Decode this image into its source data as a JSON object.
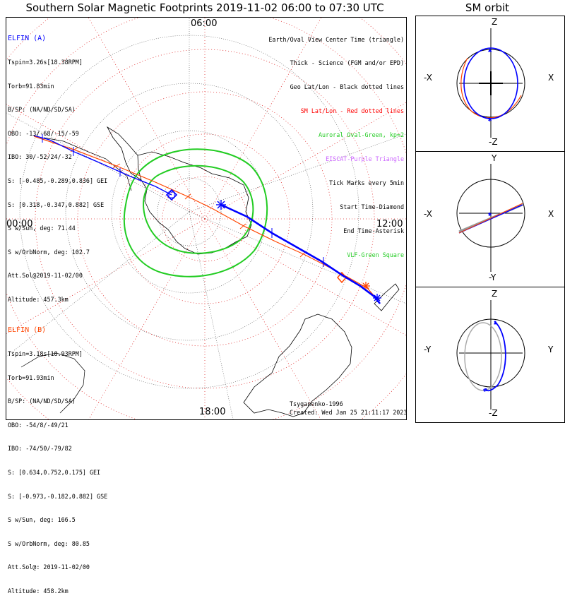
{
  "title": "Southern Solar Magnetic Footprints 2019-11-02 06:00 to 07:30 UTC",
  "orbit_title": "SM orbit",
  "hours": {
    "top": "06:00",
    "left": "00:00",
    "right": "12:00",
    "bottom": "18:00"
  },
  "elfin_a": {
    "color": "#0000ff",
    "lines": [
      "ELFIN (A)",
      "Tspin=3.26s[18.38RPM]",
      "Torb=91.83min",
      "B/SP: (NA/ND/SD/SA)",
      "OBO: -13/-68/-15/-59",
      "IBO: 30/-52/24/-32",
      "S: [-0.485,-0.289,0.836] GEI",
      "S: [0.318,-0.347,0.882] GSE",
      "S w/Sun, deg: 71.44",
      "S w/OrbNorm, deg: 102.7",
      "Att.Sol@2019-11-02/00",
      "Altitude: 457.3km"
    ]
  },
  "elfin_b": {
    "color": "#ff4500",
    "lines": [
      "ELFIN (B)",
      "Tspin=3.18s[18.93RPM]",
      "Torb=91.93min",
      "B/SP: (NA/ND/SD/SA)",
      "OBO: -54/8/-49/21",
      "IBO: -74/50/-79/82",
      "S: [0.634,0.752,0.175] GEI",
      "S: [-0.973,-0.182,0.882] GSE",
      "S w/Sun, deg: 166.5",
      "S w/OrbNorm, deg: 80.85",
      "Att.Sol@: 2019-11-02/00",
      "Altitude: 458.2km"
    ]
  },
  "legend": [
    {
      "text": "Earth/Oval View Center Time (triangle)",
      "color": "#000000"
    },
    {
      "text": "Thick - Science (FGM and/or EPD)",
      "color": "#000000"
    },
    {
      "text": "Geo Lat/Lon - Black dotted lines",
      "color": "#000000"
    },
    {
      "text": "SM Lat/Lon - Red dotted lines",
      "color": "#ff0000"
    },
    {
      "text": "Auroral Oval-Green, kp=2",
      "color": "#22cc22"
    },
    {
      "text": "EISCAT-Purple Triangle",
      "color": "#cc66ff"
    },
    {
      "text": "Tick Marks every 5min",
      "color": "#000000"
    },
    {
      "text": "Start Time-Diamond",
      "color": "#000000"
    },
    {
      "text": "End Time-Asterisk",
      "color": "#000000"
    },
    {
      "text": "VLF-Green Square",
      "color": "#22cc22"
    }
  ],
  "footer": {
    "author": "Tsyganenko-1996",
    "created": "Created: Wed Jan 25 21:11:17 2023"
  },
  "orbit_panels": [
    {
      "top": "Z",
      "bottom": "-Z",
      "left": "-X",
      "right": "X"
    },
    {
      "top": "Y",
      "bottom": "-Y",
      "left": "-X",
      "right": "X"
    },
    {
      "top": "Z",
      "bottom": "-Z",
      "left": "-Y",
      "right": "Y"
    }
  ]
}
